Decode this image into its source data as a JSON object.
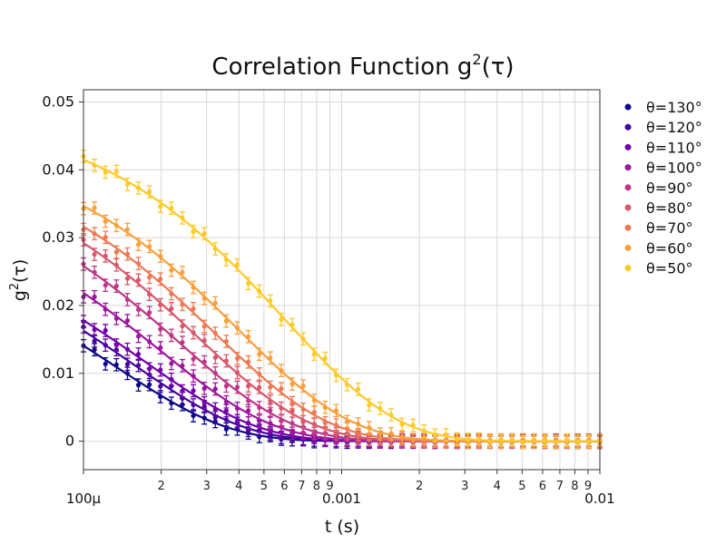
{
  "chart_data": {
    "type": "scatter",
    "title": {
      "main": "Correlation Function g",
      "sup": "2",
      "tail": "(τ)"
    },
    "xlabel": "t (s)",
    "ylabel": {
      "main": "g",
      "sup": "2",
      "tail": "(τ)"
    },
    "x_scale": "log",
    "xlim": [
      0.0001,
      0.01
    ],
    "ylim": [
      -0.0042,
      0.0518
    ],
    "x_major_ticks": [
      {
        "value": 0.0001,
        "label": "100μ"
      },
      {
        "value": 0.001,
        "label": "0.001"
      },
      {
        "value": 0.01,
        "label": "0.01"
      }
    ],
    "x_minor_labels": [
      "2",
      "3",
      "4",
      "5",
      "6",
      "7",
      "8",
      "9"
    ],
    "y_ticks": [
      {
        "value": 0,
        "label": "0"
      },
      {
        "value": 0.01,
        "label": "0.01"
      },
      {
        "value": 0.02,
        "label": "0.02"
      },
      {
        "value": 0.03,
        "label": "0.03"
      },
      {
        "value": 0.04,
        "label": "0.04"
      },
      {
        "value": 0.05,
        "label": "0.05"
      }
    ],
    "grid": true,
    "legend_position": "right",
    "markers": "points with error bars and fitted curve",
    "series": [
      {
        "name": "θ=130°",
        "color": "#0d0887",
        "amplitude": 0.0295,
        "decay_time": 0.00027
      },
      {
        "name": "θ=120°",
        "color": "#46039f",
        "amplitude": 0.031,
        "decay_time": 0.00031
      },
      {
        "name": "θ=110°",
        "color": "#7201a8",
        "amplitude": 0.0315,
        "decay_time": 0.00035
      },
      {
        "name": "θ=100°",
        "color": "#9c179e",
        "amplitude": 0.036,
        "decay_time": 0.0004
      },
      {
        "name": "θ=90°",
        "color": "#bd3786",
        "amplitude": 0.0395,
        "decay_time": 0.00047
      },
      {
        "name": "θ=80°",
        "color": "#d8576b",
        "amplitude": 0.042,
        "decay_time": 0.00055
      },
      {
        "name": "θ=70°",
        "color": "#ed7953",
        "amplitude": 0.043,
        "decay_time": 0.00065
      },
      {
        "name": "θ=60°",
        "color": "#fb9f3a",
        "amplitude": 0.0445,
        "decay_time": 0.0008
      },
      {
        "name": "θ=50°",
        "color": "#fdca26",
        "amplitude": 0.049,
        "decay_time": 0.0012
      }
    ]
  }
}
